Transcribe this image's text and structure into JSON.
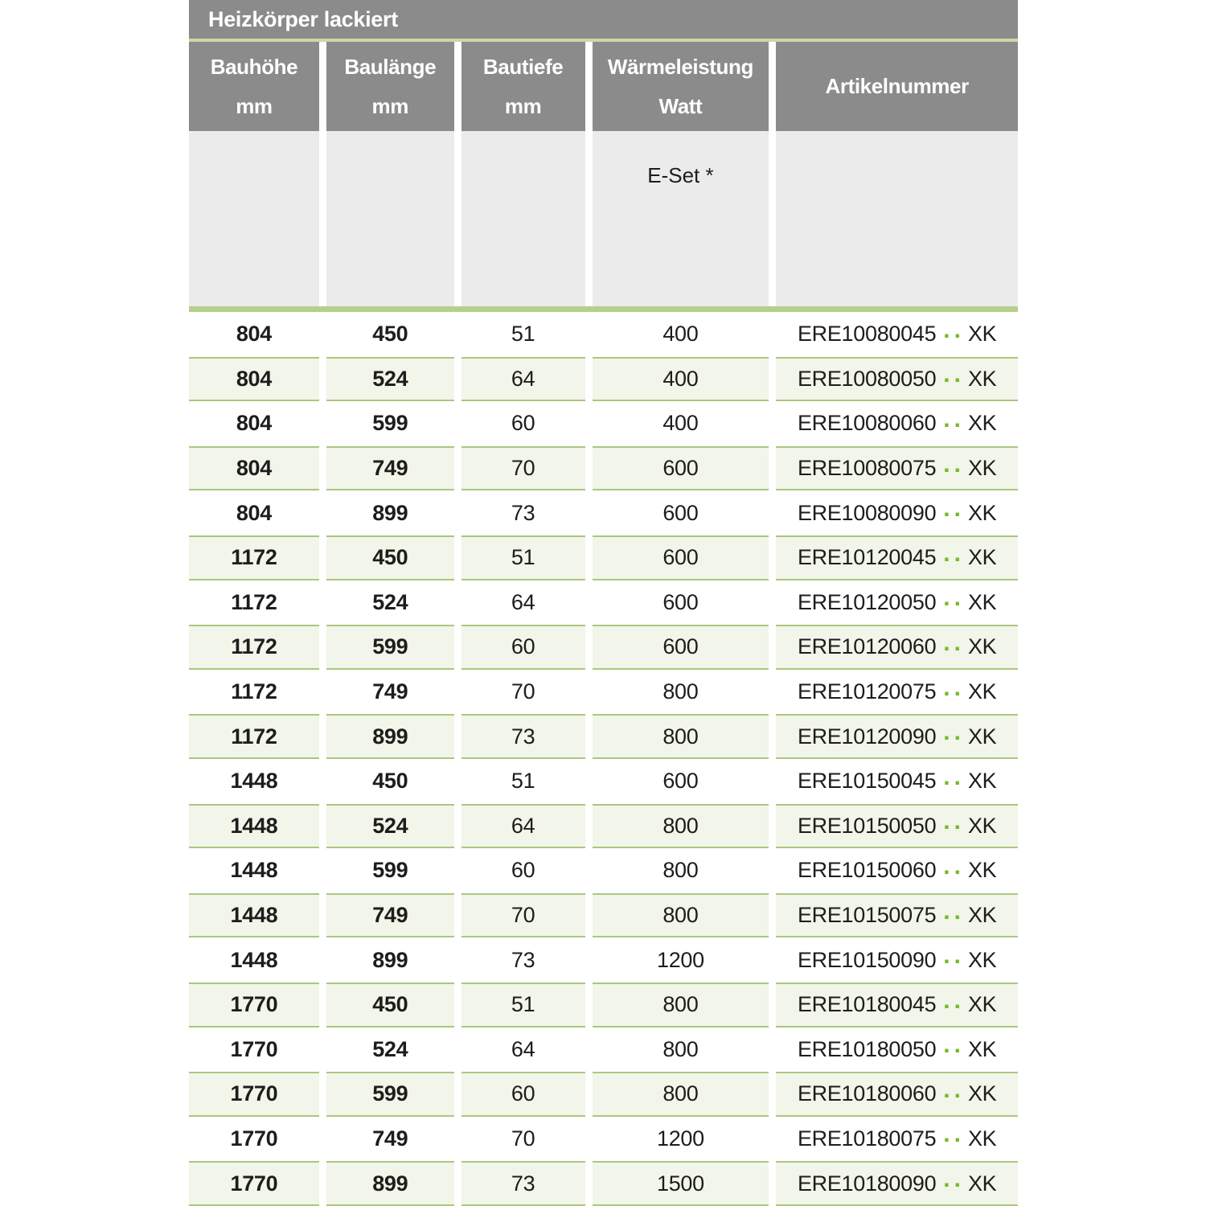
{
  "table": {
    "title": "Heizkörper lackiert",
    "columns": [
      {
        "id": "bauhoehe",
        "line1": "Bauhöhe",
        "line2": "mm"
      },
      {
        "id": "baulaenge",
        "line1": "Baulänge",
        "line2": "mm"
      },
      {
        "id": "bautiefe",
        "line1": "Bautiefe",
        "line2": "mm"
      },
      {
        "id": "waermeleistung",
        "line1": "Wärmeleistung",
        "line2": "Watt"
      },
      {
        "id": "artikelnummer",
        "line1": "Artikelnummer",
        "line2": ""
      }
    ],
    "subheader": {
      "e_set_label": "E-Set *"
    },
    "art_dots": "..",
    "art_suffix": "XK",
    "rows": [
      {
        "bauhoehe": "804",
        "baulaenge": "450",
        "bautiefe": "51",
        "watt": "400",
        "art_prefix": "ERE10080045"
      },
      {
        "bauhoehe": "804",
        "baulaenge": "524",
        "bautiefe": "64",
        "watt": "400",
        "art_prefix": "ERE10080050"
      },
      {
        "bauhoehe": "804",
        "baulaenge": "599",
        "bautiefe": "60",
        "watt": "400",
        "art_prefix": "ERE10080060"
      },
      {
        "bauhoehe": "804",
        "baulaenge": "749",
        "bautiefe": "70",
        "watt": "600",
        "art_prefix": "ERE10080075"
      },
      {
        "bauhoehe": "804",
        "baulaenge": "899",
        "bautiefe": "73",
        "watt": "600",
        "art_prefix": "ERE10080090"
      },
      {
        "bauhoehe": "1172",
        "baulaenge": "450",
        "bautiefe": "51",
        "watt": "600",
        "art_prefix": "ERE10120045"
      },
      {
        "bauhoehe": "1172",
        "baulaenge": "524",
        "bautiefe": "64",
        "watt": "600",
        "art_prefix": "ERE10120050"
      },
      {
        "bauhoehe": "1172",
        "baulaenge": "599",
        "bautiefe": "60",
        "watt": "600",
        "art_prefix": "ERE10120060"
      },
      {
        "bauhoehe": "1172",
        "baulaenge": "749",
        "bautiefe": "70",
        "watt": "800",
        "art_prefix": "ERE10120075"
      },
      {
        "bauhoehe": "1172",
        "baulaenge": "899",
        "bautiefe": "73",
        "watt": "800",
        "art_prefix": "ERE10120090"
      },
      {
        "bauhoehe": "1448",
        "baulaenge": "450",
        "bautiefe": "51",
        "watt": "600",
        "art_prefix": "ERE10150045"
      },
      {
        "bauhoehe": "1448",
        "baulaenge": "524",
        "bautiefe": "64",
        "watt": "800",
        "art_prefix": "ERE10150050"
      },
      {
        "bauhoehe": "1448",
        "baulaenge": "599",
        "bautiefe": "60",
        "watt": "800",
        "art_prefix": "ERE10150060"
      },
      {
        "bauhoehe": "1448",
        "baulaenge": "749",
        "bautiefe": "70",
        "watt": "800",
        "art_prefix": "ERE10150075"
      },
      {
        "bauhoehe": "1448",
        "baulaenge": "899",
        "bautiefe": "73",
        "watt": "1200",
        "art_prefix": "ERE10150090"
      },
      {
        "bauhoehe": "1770",
        "baulaenge": "450",
        "bautiefe": "51",
        "watt": "800",
        "art_prefix": "ERE10180045"
      },
      {
        "bauhoehe": "1770",
        "baulaenge": "524",
        "bautiefe": "64",
        "watt": "800",
        "art_prefix": "ERE10180050"
      },
      {
        "bauhoehe": "1770",
        "baulaenge": "599",
        "bautiefe": "60",
        "watt": "800",
        "art_prefix": "ERE10180060"
      },
      {
        "bauhoehe": "1770",
        "baulaenge": "749",
        "bautiefe": "70",
        "watt": "1200",
        "art_prefix": "ERE10180075"
      },
      {
        "bauhoehe": "1770",
        "baulaenge": "899",
        "bautiefe": "73",
        "watt": "1500",
        "art_prefix": "ERE10180090"
      }
    ]
  },
  "colors": {
    "header_gray": "#8b8b8b",
    "subheader_gray": "#ebebeb",
    "title_rule_green": "#c9d8a6",
    "bar_green": "#b6cf8c",
    "row_border_green": "#a9c87e",
    "row_fill_green": "#f2f5e9",
    "dot_green": "#76b82a",
    "text": "#1d1d1b"
  }
}
